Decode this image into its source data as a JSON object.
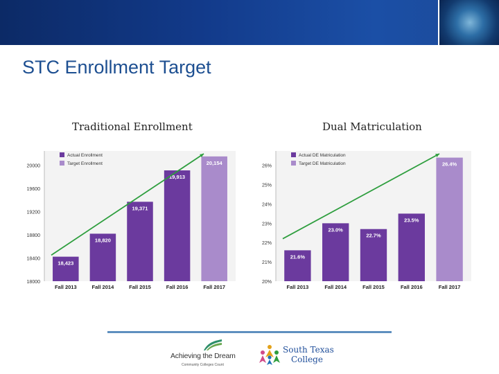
{
  "slide": {
    "title": "STC Enrollment Target",
    "footer": {
      "logo1_text": "Achieving the Dream",
      "logo1_tagline": "Community Colleges Count",
      "logo2_line1": "South Texas",
      "logo2_line2": "College"
    }
  },
  "colors": {
    "actual": "#6b3a9e",
    "target": "#a98bcb",
    "trend": "#2e9e3e",
    "header": "#123a8a",
    "title": "#1d4f91"
  },
  "chart_data": [
    {
      "type": "bar",
      "title": "Traditional Enrollment",
      "categories": [
        "Fall 2013",
        "Fall 2014",
        "Fall 2015",
        "Fall 2016",
        "Fall 2017"
      ],
      "values": [
        18423,
        18820,
        19371,
        19913,
        20154
      ],
      "labels": [
        "18,423",
        "18,820",
        "19,371",
        "19,913",
        "20,154"
      ],
      "series_by_bar": [
        "actual",
        "actual",
        "actual",
        "actual",
        "target"
      ],
      "legend": [
        {
          "key": "actual",
          "label": "Actual Enrollment"
        },
        {
          "key": "target",
          "label": "Target Enrollment"
        }
      ],
      "legend_position": "top-left",
      "ylim": [
        18000,
        20200
      ],
      "yticks": [
        18000,
        18400,
        18800,
        19200,
        19600,
        20000
      ],
      "ytick_labels": [
        "18000",
        "18400",
        "18800",
        "19200",
        "19600",
        "20000"
      ],
      "trend_line": {
        "from": 18450,
        "to": 20200
      },
      "grid": false
    },
    {
      "type": "bar",
      "title": "Dual Matriculation",
      "categories": [
        "Fall 2013",
        "Fall 2014",
        "Fall 2015",
        "Fall 2016",
        "Fall 2017"
      ],
      "values": [
        21.6,
        23.0,
        22.7,
        23.5,
        26.4
      ],
      "labels": [
        "21.6%",
        "23.0%",
        "22.7%",
        "23.5%",
        "26.4%"
      ],
      "series_by_bar": [
        "actual",
        "actual",
        "actual",
        "actual",
        "target"
      ],
      "legend": [
        {
          "key": "actual",
          "label": "Actual DE Matriculation"
        },
        {
          "key": "target",
          "label": "Target DE Matriculation"
        }
      ],
      "legend_position": "top-left",
      "ylim": [
        20,
        26.6
      ],
      "yticks": [
        20,
        21,
        22,
        23,
        24,
        25,
        26
      ],
      "ytick_labels": [
        "20%",
        "21%",
        "22%",
        "23%",
        "24%",
        "25%",
        "26%"
      ],
      "trend_line": {
        "from": 22.2,
        "to": 26.6
      },
      "grid": false
    }
  ]
}
